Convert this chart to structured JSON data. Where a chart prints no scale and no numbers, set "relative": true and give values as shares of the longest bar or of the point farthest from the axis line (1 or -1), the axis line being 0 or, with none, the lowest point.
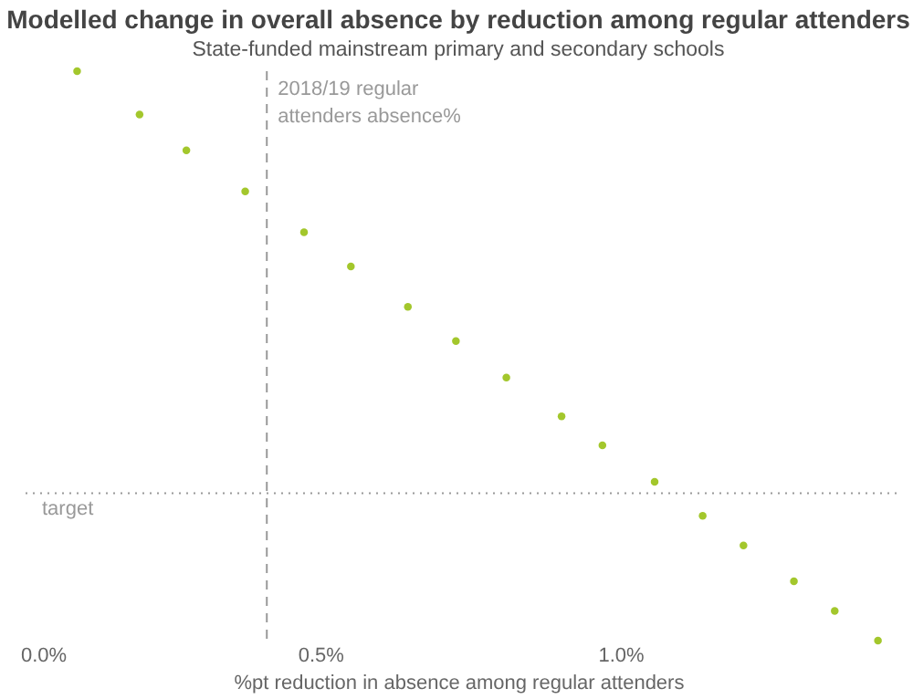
{
  "chart_data": {
    "type": "scatter",
    "title": "Modelled change in overall absence by reduction among regular attenders",
    "subtitle": "State-funded mainstream primary and secondary schools",
    "xlabel": "%pt reduction in absence among regular attenders",
    "x": [
      0.095,
      0.199,
      0.277,
      0.375,
      0.473,
      0.551,
      0.646,
      0.726,
      0.81,
      0.902,
      0.97,
      1.057,
      1.137,
      1.205,
      1.289,
      1.357,
      1.429
    ],
    "series": [
      {
        "color": "#a3c72c",
        "values": [
          1.0,
          0.924,
          0.861,
          0.789,
          0.717,
          0.657,
          0.586,
          0.526,
          0.462,
          0.394,
          0.343,
          0.279,
          0.219,
          0.167,
          0.104,
          0.052,
          0.0
        ]
      }
    ],
    "relative": true,
    "marker": "circle",
    "xlim": [
      0,
      1.46
    ],
    "xticks": [
      {
        "value": 0,
        "label": "0.0%"
      },
      {
        "value": 0.5,
        "label": "0.5%"
      },
      {
        "value": 1.0,
        "label": "1.0%"
      }
    ],
    "ref_lines": [
      {
        "axis": "x",
        "value": 0.411,
        "label": "2018/19 regular\nattenders absence%",
        "color": "#999999",
        "line_style": "dashed"
      },
      {
        "axis": "y",
        "value": 0.259,
        "label": "target",
        "color": "#999999",
        "line_style": "dotted"
      }
    ],
    "grid": false
  }
}
